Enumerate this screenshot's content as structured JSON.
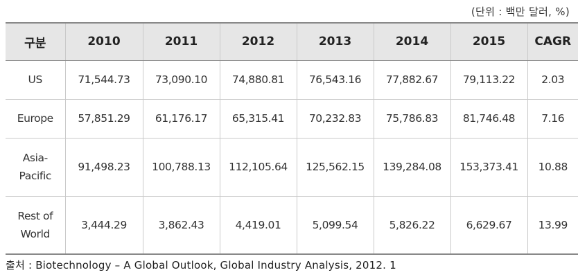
{
  "unit_note": "(단위 : 백만 달러, %)",
  "table": {
    "header": [
      "구분",
      "2010",
      "2011",
      "2012",
      "2013",
      "2014",
      "2015",
      "CAGR"
    ],
    "rows": [
      {
        "region_lines": [
          "US"
        ],
        "cells": [
          "71,544.73",
          "73,090.10",
          "74,880.81",
          "76,543.16",
          "77,882.67",
          "79,113.22",
          "2.03"
        ]
      },
      {
        "region_lines": [
          "Europe"
        ],
        "cells": [
          "57,851.29",
          "61,176.17",
          "65,315.41",
          "70,232.83",
          "75,786.83",
          "81,746.48",
          "7.16"
        ]
      },
      {
        "region_lines": [
          "Asia-",
          "Pacific"
        ],
        "cells": [
          "91,498.23",
          "100,788.13",
          "112,105.64",
          "125,562.15",
          "139,284.08",
          "153,373.41",
          "10.88"
        ]
      },
      {
        "region_lines": [
          "Rest of",
          "World"
        ],
        "cells": [
          "3,444.29",
          "3,862.43",
          "4,419.01",
          "5,099.54",
          "5,826.22",
          "6,629.67",
          "13.99"
        ]
      }
    ]
  },
  "source_note": "출처 : Biotechnology – A Global Outlook, Global Industry Analysis, 2012. 1"
}
